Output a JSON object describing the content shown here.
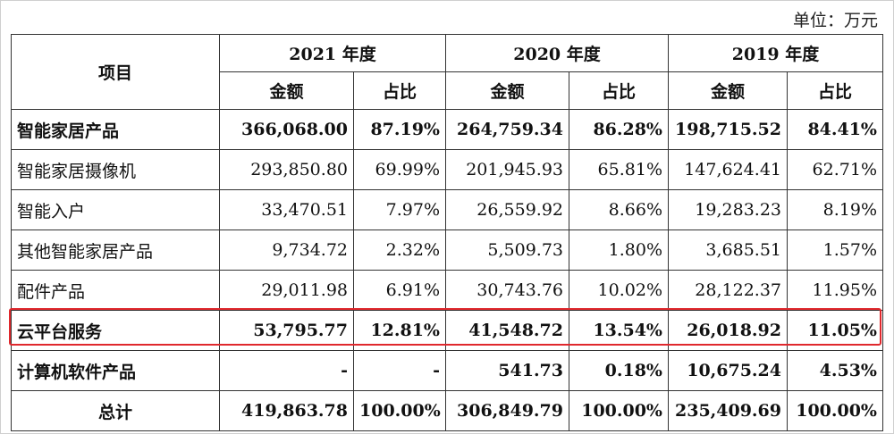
{
  "unit_label": "单位：万元",
  "header": {
    "item": "项目",
    "years": [
      "2021 年度",
      "2020 年度",
      "2019 年度"
    ],
    "amount": "金额",
    "ratio": "占比"
  },
  "rows": [
    {
      "label": "智能家居产品",
      "bold": true,
      "highlight": false,
      "values": [
        "366,068.00",
        "87.19%",
        "264,759.34",
        "86.28%",
        "198,715.52",
        "84.41%"
      ]
    },
    {
      "label": "智能家居摄像机",
      "bold": false,
      "highlight": false,
      "values": [
        "293,850.80",
        "69.99%",
        "201,945.93",
        "65.81%",
        "147,624.41",
        "62.71%"
      ]
    },
    {
      "label": "智能入户",
      "bold": false,
      "highlight": false,
      "values": [
        "33,470.51",
        "7.97%",
        "26,559.92",
        "8.66%",
        "19,283.23",
        "8.19%"
      ]
    },
    {
      "label": "其他智能家居产品",
      "bold": false,
      "highlight": false,
      "values": [
        "9,734.72",
        "2.32%",
        "5,509.73",
        "1.80%",
        "3,685.51",
        "1.57%"
      ]
    },
    {
      "label": "配件产品",
      "bold": false,
      "highlight": false,
      "values": [
        "29,011.98",
        "6.91%",
        "30,743.76",
        "10.02%",
        "28,122.37",
        "11.95%"
      ]
    },
    {
      "label": "云平台服务",
      "bold": true,
      "highlight": true,
      "values": [
        "53,795.77",
        "12.81%",
        "41,548.72",
        "13.54%",
        "26,018.92",
        "11.05%"
      ]
    },
    {
      "label": "计算机软件产品",
      "bold": true,
      "highlight": false,
      "values": [
        "-",
        "-",
        "541.73",
        "0.18%",
        "10,675.24",
        "4.53%"
      ]
    }
  ],
  "total": {
    "label": "总计",
    "values": [
      "419,863.78",
      "100.00%",
      "306,849.79",
      "100.00%",
      "235,409.69",
      "100.00%"
    ]
  },
  "colors": {
    "highlight_border": "#e0282d",
    "grid": "#333333"
  }
}
